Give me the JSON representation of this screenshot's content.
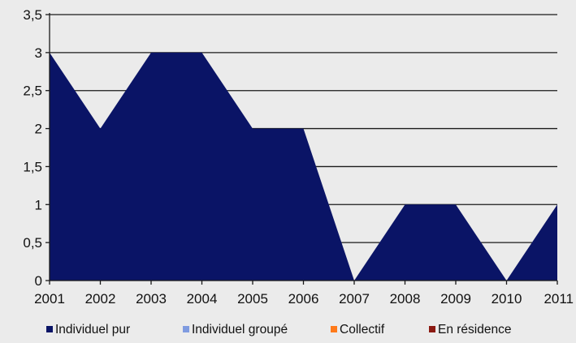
{
  "chart_data": {
    "type": "area",
    "categories": [
      "2001",
      "2002",
      "2003",
      "2004",
      "2005",
      "2006",
      "2007",
      "2008",
      "2009",
      "2010",
      "2011"
    ],
    "ylim": [
      0,
      3.5
    ],
    "y_ticks": [
      "0",
      "0,5",
      "1",
      "1,5",
      "2",
      "2,5",
      "3",
      "3,5"
    ],
    "y_tick_values": [
      0,
      0.5,
      1,
      1.5,
      2,
      2.5,
      3,
      3.5
    ],
    "series": [
      {
        "name": "Individuel pur",
        "color": "#0a1466",
        "values": [
          3,
          2,
          3,
          3,
          2,
          2,
          0,
          1,
          1,
          0,
          1
        ]
      },
      {
        "name": "Individuel groupé",
        "color": "#7f9be0",
        "values": [
          0,
          0,
          0,
          0,
          0,
          0,
          0,
          0,
          0,
          0,
          0
        ]
      },
      {
        "name": "Collectif",
        "color": "#ff7a1a",
        "values": [
          0,
          0,
          0,
          0,
          0,
          0,
          0,
          0,
          0,
          0,
          0
        ]
      },
      {
        "name": "En résidence",
        "color": "#8b1a12",
        "values": [
          0,
          0,
          0,
          0,
          0,
          0,
          0,
          0,
          0,
          0,
          0
        ]
      }
    ],
    "grid": true,
    "legend_position": "bottom"
  }
}
